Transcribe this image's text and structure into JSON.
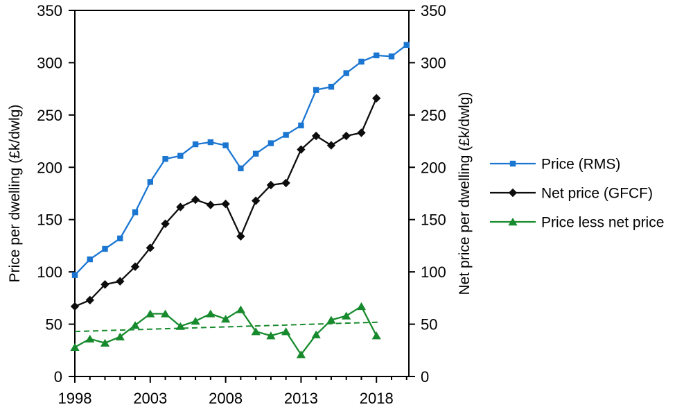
{
  "chart_data": {
    "type": "line",
    "title": "",
    "xlabel": "",
    "ylabel_left": "Price per dwelling (£k/dwlg)",
    "ylabel_right": "Net price per dwelling (£k/dwlg)",
    "xlim": [
      1998,
      2020.15
    ],
    "ylim": [
      0,
      350
    ],
    "yticks": [
      0,
      50,
      100,
      150,
      200,
      250,
      300,
      350
    ],
    "xticks_major": [
      1998,
      2003,
      2008,
      2013,
      2018
    ],
    "xticks_minor_start": 1998,
    "xticks_minor_end": 2020,
    "grid": false,
    "legend_position": "right-outside",
    "x": [
      1998,
      1999,
      2000,
      2001,
      2002,
      2003,
      2004,
      2005,
      2006,
      2007,
      2008,
      2009,
      2010,
      2011,
      2012,
      2013,
      2014,
      2015,
      2016,
      2017,
      2018,
      2019,
      2020
    ],
    "series": [
      {
        "name": "Price (RMS)",
        "color": "#1b76d2",
        "marker": "square",
        "line_style": "solid",
        "values": [
          97,
          112,
          122,
          132,
          157,
          186,
          208,
          211,
          222,
          224,
          221,
          199,
          213,
          223,
          231,
          240,
          274,
          277,
          290,
          301,
          307,
          306,
          317
        ]
      },
      {
        "name": "Net price (GFCF)",
        "color": "#0d0d0d",
        "marker": "diamond",
        "line_style": "solid",
        "values": [
          67,
          73,
          88,
          91,
          105,
          123,
          146,
          162,
          169,
          164,
          165,
          134,
          168,
          183,
          185,
          217,
          230,
          221,
          230,
          233,
          266
        ]
      },
      {
        "name": "Price less net price",
        "color": "#168a2c",
        "marker": "triangle",
        "line_style": "solid",
        "values": [
          28,
          36,
          32,
          38,
          49,
          60,
          60,
          48,
          53,
          60,
          55,
          64,
          43,
          39,
          43,
          21,
          40,
          54,
          58,
          67,
          39
        ]
      }
    ],
    "trendline": {
      "series": "Price less net price",
      "style": "dashed",
      "color": "#168a2c",
      "start_x": 1998,
      "start_value": 43,
      "end_x": 2018.3,
      "end_value": 52
    }
  }
}
